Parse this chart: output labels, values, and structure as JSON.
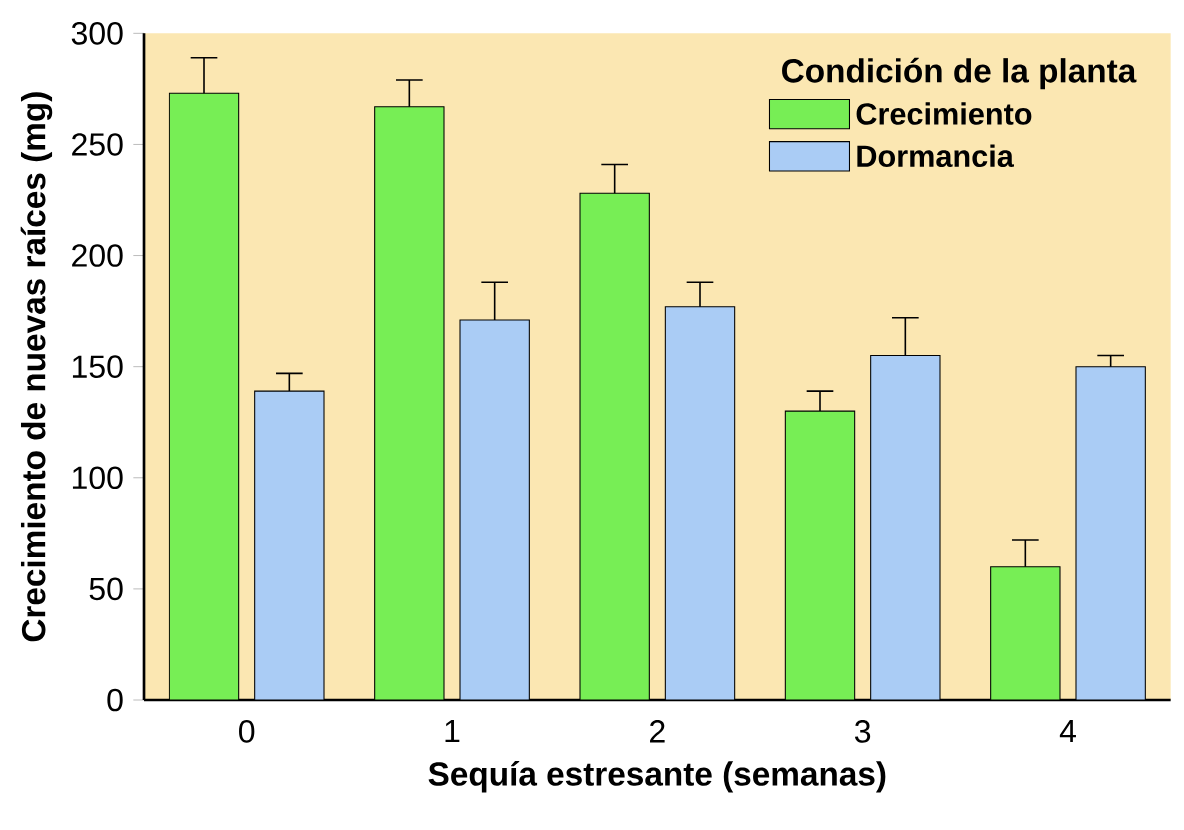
{
  "chart_data": {
    "type": "bar",
    "xlabel": "Sequía estresante (semanas)",
    "ylabel": "Crecimiento de nuevas raíces (mg)",
    "legend_title": "Condición de la planta",
    "legend": "top right",
    "categories": [
      "0",
      "1",
      "2",
      "3",
      "4"
    ],
    "ylim": [
      0,
      300
    ],
    "yticks": [
      0,
      50,
      100,
      150,
      200,
      250,
      300
    ],
    "series": [
      {
        "name": "Crecimiento",
        "color": "#77ee55",
        "values": [
          273,
          267,
          228,
          130,
          60
        ],
        "errors": [
          [
            273,
            289
          ],
          [
            267,
            279
          ],
          [
            228,
            241
          ],
          [
            130,
            139
          ],
          [
            60,
            72
          ]
        ]
      },
      {
        "name": "Dormancia",
        "color": "#aaccf5",
        "values": [
          139,
          171,
          177,
          155,
          150
        ],
        "errors": [
          [
            139,
            147
          ],
          [
            171,
            188
          ],
          [
            177,
            188
          ],
          [
            155,
            172
          ],
          [
            150,
            155
          ]
        ]
      }
    ]
  }
}
